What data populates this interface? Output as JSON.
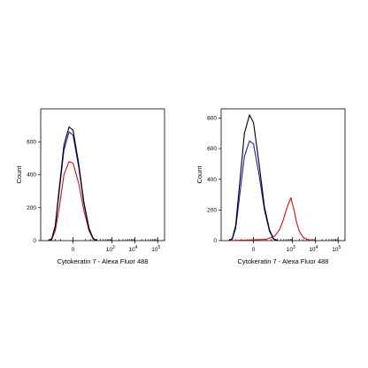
{
  "chart_data": [
    {
      "type": "line",
      "title": "",
      "xlabel": "Cytokeratin 7 - Alexa Fluor 488",
      "ylabel": "Count",
      "x_scale": "biexponential",
      "xlim": [
        -500,
        200000
      ],
      "ylim": [
        0,
        800
      ],
      "grid": false,
      "x_ticks": [
        {
          "value": 0,
          "label": "0"
        },
        {
          "value": 1000,
          "label": "10",
          "exp": "3"
        },
        {
          "value": 10000,
          "label": "10",
          "exp": "4"
        },
        {
          "value": 100000,
          "label": "10",
          "exp": "5"
        }
      ],
      "y_ticks": [
        {
          "value": 0,
          "label": "0"
        },
        {
          "value": 200,
          "label": "200"
        },
        {
          "value": 400,
          "label": "400"
        },
        {
          "value": 600,
          "label": "600"
        }
      ],
      "series": [
        {
          "color": "#d01010",
          "x": [
            -220,
            -150,
            -100,
            -60,
            -30,
            -10,
            0,
            15,
            40,
            80,
            130,
            200
          ],
          "values": [
            0,
            8,
            60,
            200,
            400,
            480,
            470,
            350,
            180,
            60,
            10,
            0
          ]
        },
        {
          "color": "#1a1ab0",
          "x": [
            -220,
            -150,
            -100,
            -60,
            -30,
            -10,
            0,
            15,
            40,
            80,
            130,
            200
          ],
          "values": [
            0,
            10,
            80,
            300,
            550,
            660,
            640,
            450,
            220,
            70,
            12,
            0
          ]
        },
        {
          "color": "#000000",
          "x": [
            -220,
            -150,
            -100,
            -60,
            -30,
            -10,
            0,
            15,
            40,
            80,
            130,
            200
          ],
          "values": [
            0,
            12,
            90,
            320,
            580,
            690,
            670,
            470,
            230,
            75,
            14,
            0
          ]
        }
      ]
    },
    {
      "type": "line",
      "title": "",
      "xlabel": "Cytokeratin 7 - Alexa Fluor 488",
      "ylabel": "Count",
      "x_scale": "biexponential",
      "xlim": [
        -500,
        200000
      ],
      "ylim": [
        0,
        860
      ],
      "grid": false,
      "x_ticks": [
        {
          "value": 0,
          "label": "0"
        },
        {
          "value": 1000,
          "label": "10",
          "exp": "3"
        },
        {
          "value": 10000,
          "label": "10",
          "exp": "4"
        },
        {
          "value": 100000,
          "label": "10",
          "exp": "5"
        }
      ],
      "y_ticks": [
        {
          "value": 0,
          "label": "0"
        },
        {
          "value": 200,
          "label": "200"
        },
        {
          "value": 400,
          "label": "400"
        },
        {
          "value": 600,
          "label": "600"
        },
        {
          "value": 800,
          "label": "800"
        }
      ],
      "series": [
        {
          "color": "#d01010",
          "x": [
            -200,
            50,
            150,
            250,
            350,
            450,
            550,
            650,
            750,
            850,
            950,
            1200,
            1500,
            2000,
            3000,
            5000,
            8000
          ],
          "values": [
            0,
            8,
            30,
            70,
            120,
            170,
            210,
            240,
            260,
            280,
            250,
            190,
            120,
            60,
            20,
            5,
            0
          ]
        },
        {
          "color": "#1a1ab0",
          "x": [
            -220,
            -150,
            -100,
            -60,
            -30,
            -10,
            0,
            15,
            40,
            80,
            130,
            200
          ],
          "values": [
            0,
            10,
            80,
            300,
            550,
            650,
            630,
            430,
            200,
            60,
            10,
            0
          ]
        },
        {
          "color": "#000000",
          "x": [
            -220,
            -150,
            -100,
            -60,
            -30,
            -10,
            0,
            15,
            40,
            80,
            130,
            200
          ],
          "values": [
            0,
            12,
            100,
            380,
            700,
            820,
            770,
            500,
            220,
            70,
            12,
            0
          ]
        }
      ]
    }
  ]
}
